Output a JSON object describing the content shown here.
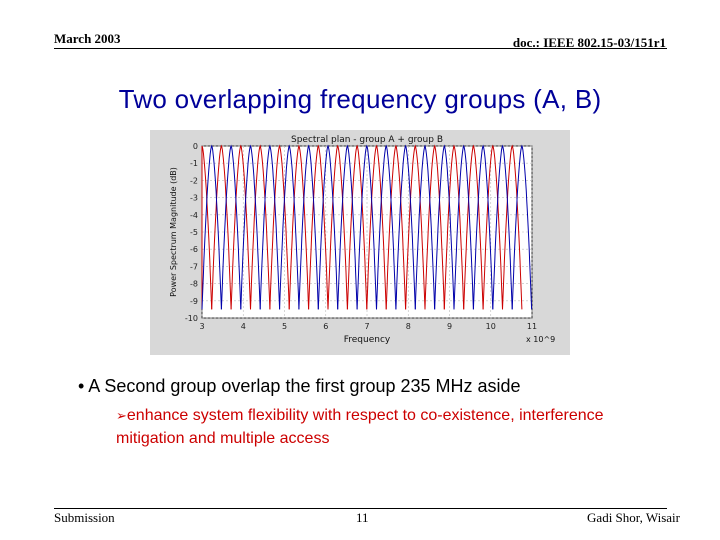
{
  "header": {
    "date": "March 2003",
    "doc_id": "doc.: IEEE 802.15-03/151r1"
  },
  "slide": {
    "title": "Two overlapping frequency groups (A, B)",
    "bullet": "• A Second group overlap the first group 235 MHz aside",
    "sub_bullet": "enhance system flexibility with respect to co-existence, interference mitigation and multiple access"
  },
  "footer": {
    "left": "Submission",
    "page": "11",
    "right": "Gadi Shor, Wisair"
  },
  "chart_data": {
    "type": "line",
    "title": "Spectral plan - group A + group B",
    "xlabel": "Frequency",
    "ylabel": "Power Spectrum Magnitude (dB)",
    "x_multiplier": "x 10^9",
    "xlim": [
      3,
      11
    ],
    "ylim": [
      -10,
      0
    ],
    "x_ticks": [
      "3",
      "4",
      "5",
      "6",
      "7",
      "8",
      "9",
      "10",
      "11"
    ],
    "y_ticks": [
      "0",
      "-1",
      "-2",
      "-3",
      "-4",
      "-5",
      "-6",
      "-7",
      "-8",
      "-9",
      "-10"
    ],
    "series": [
      {
        "color": "#cc0000",
        "start": 3.0,
        "spacing": 0.47,
        "count": 17
      },
      {
        "color": "#0000aa",
        "start": 3.235,
        "spacing": 0.47,
        "count": 17
      }
    ]
  }
}
